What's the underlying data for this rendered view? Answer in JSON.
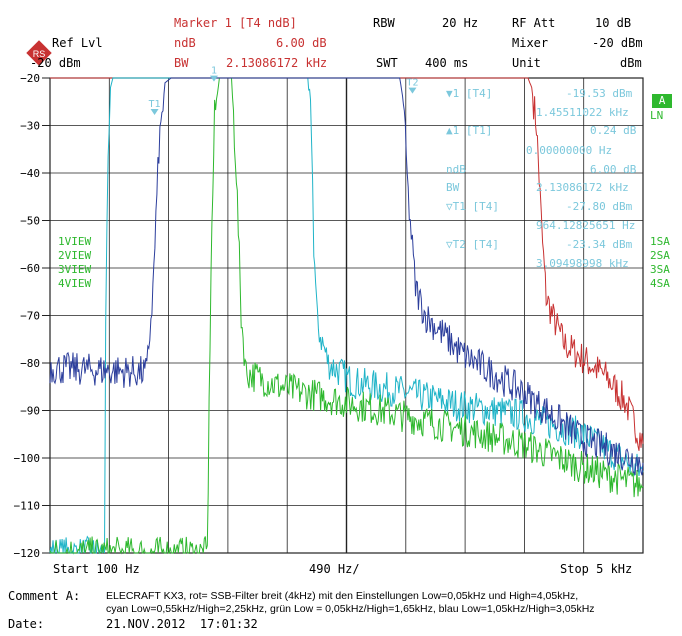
{
  "header": {
    "ref_lvl_label": "Ref Lvl",
    "ref_lvl_value": "-20 dBm",
    "marker_title": "Marker 1 [T4 ndB]",
    "ndb_label": "ndB",
    "ndb_value": "6.00 dB",
    "bw_label": "BW",
    "bw_value": "2.13086172 kHz",
    "rbw_label": "RBW",
    "rbw_value": "20 Hz",
    "swt_label": "SWT",
    "swt_value": "400 ms",
    "rfatt_label": "RF Att",
    "rfatt_value": "10 dB",
    "mixer_label": "Mixer",
    "mixer_value": "-20 dBm",
    "unit_label": "Unit",
    "unit_value": "dBm"
  },
  "marker_readout": {
    "m1_label": "▼1 [T4]",
    "m1_level": "-19.53 dBm",
    "m1_freq": "1.45511022 kHz",
    "d1_label": "▲1 [T1]",
    "d1_level": "0.24 dB",
    "d1_freq": "0.00000000 Hz",
    "ndb_label": "ndB",
    "ndb_value": "6.00 dB",
    "bw_label": "BW",
    "bw_value": "2.13086172 kHz",
    "t1_label": "▽T1 [T4]",
    "t1_level": "-27.80 dBm",
    "t1_freq": "964.12825651 Hz",
    "t2_label": "▽T2 [T4]",
    "t2_level": "-23.34 dBm",
    "t2_freq": "3.09498998 kHz"
  },
  "trace_labels": [
    "1VIEW",
    "2VIEW",
    "3VIEW",
    "4VIEW"
  ],
  "right_labels": {
    "a_badge": "A",
    "ln": "LN",
    "sa": [
      "1SA",
      "2SA",
      "3SA",
      "4SA"
    ]
  },
  "plot_markers": {
    "t1": "T1",
    "m1": "1",
    "t2": "T2"
  },
  "colors": {
    "red": "#c83232",
    "cyan": "#20b4c8",
    "green": "#2eb82e",
    "blue": "#2c3e9c",
    "grid": "#222222",
    "readout": "#7cc8dc",
    "labels": "#2eb82e"
  },
  "chart_data": {
    "type": "line",
    "xlabel_start": "Start 100 Hz",
    "xlabel_center": "490 Hz/",
    "xlabel_stop": "Stop 5 kHz",
    "xlim": [
      100,
      5000
    ],
    "ylim": [
      -120,
      -20
    ],
    "yticks": [
      -20,
      -30,
      -40,
      -50,
      -60,
      -70,
      -80,
      -90,
      -100,
      -110,
      -120
    ],
    "grid": true,
    "series": [
      {
        "key": "red",
        "points": [
          [
            100,
            -20
          ],
          [
            4050,
            -20
          ],
          [
            4080,
            -22
          ],
          [
            4120,
            -30
          ],
          [
            4150,
            -45
          ],
          [
            4170,
            -55
          ],
          [
            4200,
            -66
          ],
          [
            4250,
            -70
          ],
          [
            4350,
            -76
          ],
          [
            4500,
            -79
          ],
          [
            4700,
            -83
          ],
          [
            4850,
            -88
          ],
          [
            5000,
            -97
          ]
        ]
      },
      {
        "key": "cyan",
        "points": [
          [
            100,
            -120
          ],
          [
            550,
            -120
          ],
          [
            560,
            -70
          ],
          [
            580,
            -40
          ],
          [
            600,
            -22
          ],
          [
            620,
            -20
          ],
          [
            2230,
            -20
          ],
          [
            2260,
            -30
          ],
          [
            2280,
            -55
          ],
          [
            2310,
            -72
          ],
          [
            2400,
            -80
          ],
          [
            2600,
            -84
          ],
          [
            3000,
            -86
          ],
          [
            3500,
            -89
          ],
          [
            4000,
            -91
          ],
          [
            4500,
            -95
          ],
          [
            5000,
            -103
          ]
        ]
      },
      {
        "key": "green",
        "points": [
          [
            100,
            -120
          ],
          [
            1400,
            -120
          ],
          [
            1430,
            -60
          ],
          [
            1460,
            -28
          ],
          [
            1500,
            -20
          ],
          [
            1600,
            -20
          ],
          [
            1640,
            -40
          ],
          [
            1680,
            -70
          ],
          [
            1720,
            -82
          ],
          [
            2000,
            -85
          ],
          [
            2500,
            -88
          ],
          [
            3000,
            -91
          ],
          [
            3500,
            -94
          ],
          [
            4000,
            -97
          ],
          [
            4500,
            -102
          ],
          [
            5000,
            -106
          ]
        ]
      },
      {
        "key": "blue",
        "points": [
          [
            100,
            -81
          ],
          [
            900,
            -82
          ],
          [
            950,
            -65
          ],
          [
            1000,
            -35
          ],
          [
            1050,
            -21
          ],
          [
            1100,
            -20
          ],
          [
            2990,
            -20
          ],
          [
            3020,
            -25
          ],
          [
            3060,
            -45
          ],
          [
            3120,
            -64
          ],
          [
            3200,
            -70
          ],
          [
            3500,
            -78
          ],
          [
            4000,
            -86
          ],
          [
            4500,
            -96
          ],
          [
            5000,
            -101
          ]
        ]
      }
    ]
  },
  "footer": {
    "comment_label": "Comment A:",
    "comment_line1": "ELECRAFT KX3, rot= SSB-Filter breit (4kHz) mit den Einstellungen Low=0,05kHz und High=4,05kHz,",
    "comment_line2": "cyan Low=0,55kHz/High=2,25kHz, grün Low = 0,05kHz/High=1,65kHz, blau Low=1,05kHz/High=3,05kHz",
    "date_label": "Date:",
    "date_value": "21.NOV.2012  17:01:32"
  }
}
